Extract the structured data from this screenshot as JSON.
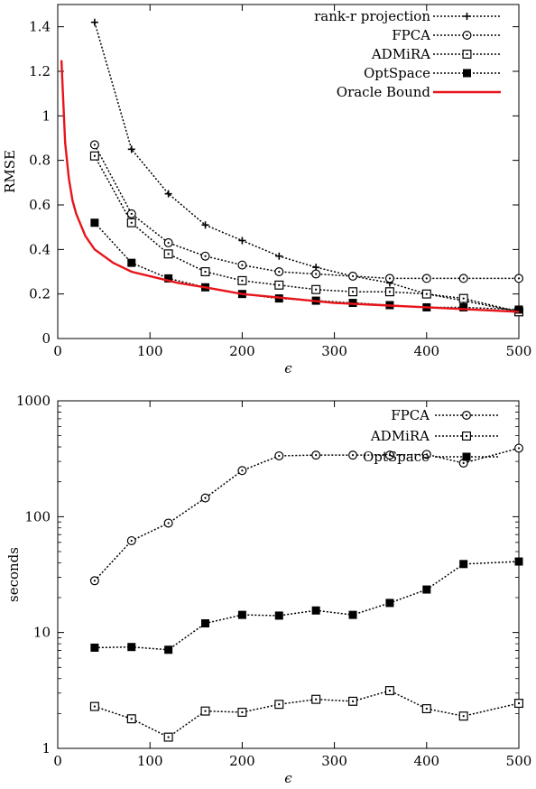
{
  "chart_data": [
    {
      "type": "line",
      "title": "",
      "xlabel": "ϵ",
      "ylabel": "RMSE",
      "xlim": [
        0,
        500
      ],
      "ylim": [
        0,
        1.5
      ],
      "yscale": "linear",
      "x_ticks": [
        "0",
        "100",
        "200",
        "300",
        "400",
        "500"
      ],
      "y_ticks": [
        "0",
        "0.2",
        "0.4",
        "0.6",
        "0.8",
        "1",
        "1.2",
        "1.4"
      ],
      "legend_position": "top-right",
      "grid": false,
      "series": [
        {
          "name": "rank-r projection",
          "marker": "plus",
          "line": "dotted",
          "color": "#000000",
          "x": [
            40,
            80,
            120,
            160,
            200,
            240,
            280,
            320,
            360,
            400,
            440,
            500
          ],
          "y": [
            1.42,
            0.85,
            0.65,
            0.51,
            0.44,
            0.37,
            0.32,
            0.28,
            0.25,
            0.2,
            0.17,
            0.12
          ]
        },
        {
          "name": "FPCA",
          "marker": "open-circle",
          "line": "dotted",
          "color": "#000000",
          "x": [
            40,
            80,
            120,
            160,
            200,
            240,
            280,
            320,
            360,
            400,
            440,
            500
          ],
          "y": [
            0.87,
            0.56,
            0.43,
            0.37,
            0.33,
            0.3,
            0.29,
            0.28,
            0.27,
            0.27,
            0.27,
            0.27
          ]
        },
        {
          "name": "ADMiRA",
          "marker": "open-square",
          "line": "dotted",
          "color": "#000000",
          "x": [
            40,
            80,
            120,
            160,
            200,
            240,
            280,
            320,
            360,
            400,
            440,
            500
          ],
          "y": [
            0.82,
            0.52,
            0.38,
            0.3,
            0.26,
            0.24,
            0.22,
            0.21,
            0.21,
            0.2,
            0.18,
            0.12
          ]
        },
        {
          "name": "OptSpace",
          "marker": "filled-square",
          "line": "dotted",
          "color": "#000000",
          "x": [
            40,
            80,
            120,
            160,
            200,
            240,
            280,
            320,
            360,
            400,
            440,
            500
          ],
          "y": [
            0.52,
            0.34,
            0.27,
            0.23,
            0.2,
            0.18,
            0.17,
            0.16,
            0.15,
            0.14,
            0.14,
            0.13
          ]
        },
        {
          "name": "Oracle Bound",
          "marker": "none",
          "line": "solid",
          "color": "#e8141a",
          "x": [
            4,
            8,
            12,
            16,
            20,
            30,
            40,
            60,
            80,
            100,
            130,
            160,
            200,
            250,
            300,
            350,
            400,
            450,
            500
          ],
          "y": [
            1.25,
            0.88,
            0.72,
            0.62,
            0.56,
            0.46,
            0.4,
            0.34,
            0.3,
            0.28,
            0.25,
            0.23,
            0.2,
            0.18,
            0.16,
            0.15,
            0.14,
            0.13,
            0.12
          ]
        }
      ]
    },
    {
      "type": "line",
      "title": "",
      "xlabel": "ϵ",
      "ylabel": "seconds",
      "xlim": [
        0,
        500
      ],
      "ylim": [
        1,
        1000
      ],
      "yscale": "log",
      "x_ticks": [
        "0",
        "100",
        "200",
        "300",
        "400",
        "500"
      ],
      "y_ticks": [
        "1",
        "10",
        "100",
        "1000"
      ],
      "legend_position": "top-right",
      "grid": false,
      "series": [
        {
          "name": "FPCA",
          "marker": "open-circle",
          "line": "dotted",
          "color": "#000000",
          "x": [
            40,
            80,
            120,
            160,
            200,
            240,
            280,
            320,
            360,
            400,
            440,
            500
          ],
          "y": [
            28,
            62,
            88,
            145,
            250,
            335,
            340,
            340,
            340,
            345,
            290,
            390
          ]
        },
        {
          "name": "ADMiRA",
          "marker": "open-square",
          "line": "dotted",
          "color": "#000000",
          "x": [
            40,
            80,
            120,
            160,
            200,
            240,
            280,
            320,
            360,
            400,
            440,
            500
          ],
          "y": [
            2.3,
            1.8,
            1.25,
            2.1,
            2.05,
            2.4,
            2.65,
            2.55,
            3.15,
            2.2,
            1.9,
            2.45
          ]
        },
        {
          "name": "OptSpace",
          "marker": "filled-square",
          "line": "dotted",
          "color": "#000000",
          "x": [
            40,
            80,
            120,
            160,
            200,
            240,
            280,
            320,
            360,
            400,
            440,
            500
          ],
          "y": [
            7.4,
            7.5,
            7.1,
            12,
            14.2,
            14,
            15.5,
            14.2,
            18,
            23.5,
            39,
            41
          ]
        }
      ]
    }
  ]
}
